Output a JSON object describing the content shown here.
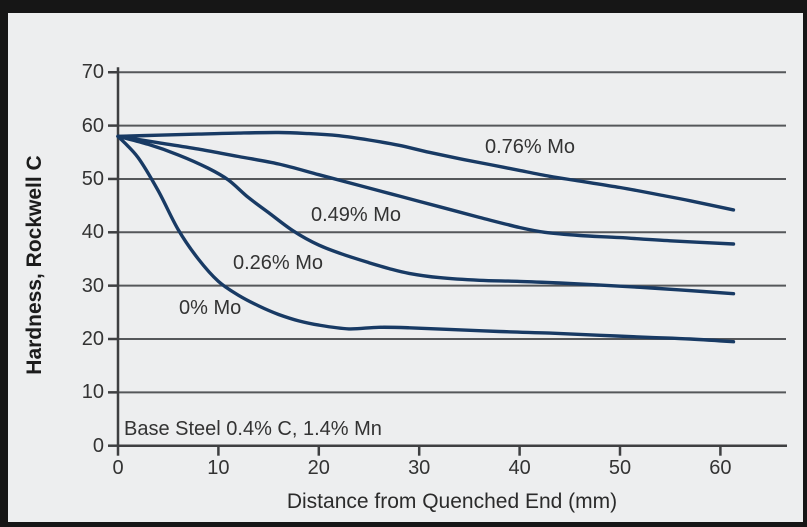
{
  "chart_data": {
    "type": "line",
    "title": "",
    "xlabel": "Distance from Quenched End (mm)",
    "ylabel": "Hardness, Rockwell C",
    "annotation": "Base Steel 0.4% C, 1.4% Mn",
    "xlim": [
      0,
      66.5
    ],
    "ylim": [
      0,
      70
    ],
    "xticks": [
      0,
      10,
      20,
      30,
      40,
      50,
      60
    ],
    "yticks": [
      0,
      10,
      20,
      30,
      40,
      50,
      60,
      70
    ],
    "grid": "horizontal gridlines at every y tick",
    "legend_position": "inline labels next to each curve",
    "colors": {
      "curve": "#183a64",
      "grid": "#55575a",
      "axis": "#3e3f41",
      "text": "#333333",
      "panel_bg": "#edeeef",
      "frame_bg": "#161616"
    },
    "series": [
      {
        "name": "0.76% Mo",
        "label_at": [
          36.55,
          58.06
        ],
        "points": [
          [
            0,
            58
          ],
          [
            4,
            58.2
          ],
          [
            8,
            58.4
          ],
          [
            12,
            58.6
          ],
          [
            16,
            58.7
          ],
          [
            19,
            58.5
          ],
          [
            22,
            58.1
          ],
          [
            25,
            57.3
          ],
          [
            28,
            56.3
          ],
          [
            31,
            55.0
          ],
          [
            34,
            53.8
          ],
          [
            37,
            52.7
          ],
          [
            40,
            51.6
          ],
          [
            43,
            50.5
          ],
          [
            46,
            49.6
          ],
          [
            50,
            48.4
          ],
          [
            54,
            47.0
          ],
          [
            57,
            45.9
          ],
          [
            61.3,
            44.2
          ]
        ]
      },
      {
        "name": "0.49% Mo",
        "label_at": [
          19.22,
          45.31
        ],
        "points": [
          [
            0,
            58
          ],
          [
            4,
            56.8
          ],
          [
            8,
            55.6
          ],
          [
            12,
            54.2
          ],
          [
            16,
            52.8
          ],
          [
            20,
            50.8
          ],
          [
            24,
            48.8
          ],
          [
            28,
            46.8
          ],
          [
            32,
            44.8
          ],
          [
            36,
            42.8
          ],
          [
            40,
            40.9
          ],
          [
            42.5,
            40.0
          ],
          [
            46,
            39.4
          ],
          [
            50,
            39.0
          ],
          [
            55,
            38.4
          ],
          [
            61.3,
            37.8
          ]
        ]
      },
      {
        "name": "0.26% Mo",
        "label_at": [
          11.45,
          36.31
        ],
        "points": [
          [
            0,
            58
          ],
          [
            3,
            56.5
          ],
          [
            6,
            54.5
          ],
          [
            9,
            52.0
          ],
          [
            11,
            49.8
          ],
          [
            13,
            46.5
          ],
          [
            15,
            43.7
          ],
          [
            17.5,
            40.2
          ],
          [
            20,
            37.6
          ],
          [
            22.5,
            35.8
          ],
          [
            25,
            34.3
          ],
          [
            27,
            33.2
          ],
          [
            29,
            32.3
          ],
          [
            32,
            31.5
          ],
          [
            36,
            31.0
          ],
          [
            40,
            30.8
          ],
          [
            44,
            30.5
          ],
          [
            48,
            30.1
          ],
          [
            52,
            29.7
          ],
          [
            56,
            29.2
          ],
          [
            61.3,
            28.5
          ]
        ]
      },
      {
        "name": "0% Mo",
        "label_at": [
          6.08,
          27.87
        ],
        "points": [
          [
            0,
            58
          ],
          [
            2,
            54.0
          ],
          [
            4,
            47.8
          ],
          [
            6,
            40.5
          ],
          [
            8,
            35.0
          ],
          [
            10,
            30.8
          ],
          [
            12,
            28.2
          ],
          [
            14,
            26.2
          ],
          [
            16,
            24.6
          ],
          [
            18,
            23.4
          ],
          [
            20,
            22.6
          ],
          [
            23,
            21.9
          ],
          [
            26,
            22.2
          ],
          [
            29,
            22.1
          ],
          [
            33,
            21.8
          ],
          [
            38,
            21.4
          ],
          [
            43,
            21.1
          ],
          [
            48,
            20.7
          ],
          [
            53,
            20.3
          ],
          [
            57,
            20.0
          ],
          [
            61.3,
            19.5
          ]
        ]
      }
    ]
  }
}
